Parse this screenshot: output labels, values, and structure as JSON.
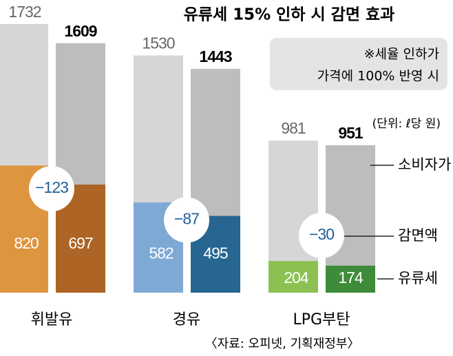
{
  "chart_data": {
    "type": "paired-bar",
    "title": "유류세 15% 인하 시 감면 효과",
    "note": [
      "※세율 인하가",
      "가격에 100% 반영 시"
    ],
    "unit": "(단위: ℓ당 원)",
    "source": "〈자료: 오피넷, 기획재정부〉",
    "categories": [
      "휘발유",
      "경유",
      "LPG부탄"
    ],
    "price_before": [
      1732,
      1530,
      981
    ],
    "price_after": [
      1609,
      1443,
      951
    ],
    "tax_before": [
      820,
      582,
      204
    ],
    "tax_after": [
      697,
      495,
      174
    ],
    "reduction": {
      "values": [
        -123,
        -87,
        -30
      ],
      "value_labels": [
        "−123",
        "−87",
        "−30"
      ]
    },
    "legend": [
      "소비자가",
      "감면액",
      "유류세"
    ],
    "tax_colors": [
      [
        "#de9540",
        "#ad6424"
      ],
      [
        "#7ea9d4",
        "#266690"
      ],
      [
        "#8cc152",
        "#3e8c3a"
      ]
    ],
    "price_colors": [
      "#d6d6d6",
      "#bdbdbd"
    ]
  }
}
